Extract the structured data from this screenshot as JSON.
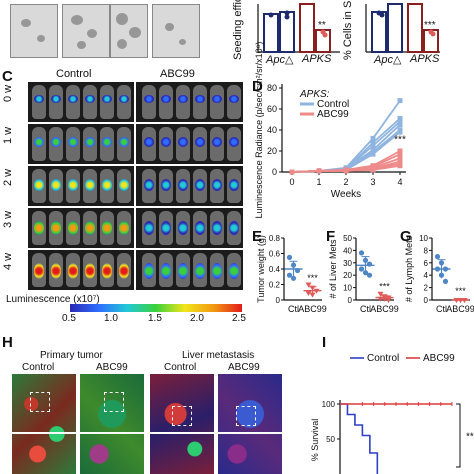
{
  "panels": {
    "C": "C",
    "D": "D",
    "E": "E",
    "F": "F",
    "G": "G",
    "H": "H",
    "I": "I"
  },
  "panelA_B": {
    "ylabel_left": "Seeding efficie",
    "ylabel_right": "% Cells in S P",
    "group1": "Apc",
    "group2": "APKS",
    "sig_left": "**",
    "sig_right": "***",
    "delta": "△"
  },
  "panelC": {
    "col_control": "Control",
    "col_abc99": "ABC99",
    "rows": [
      "0 w",
      "1 w",
      "2 w",
      "3 w",
      "4 w"
    ],
    "scale_title": "Luminescence (x10⁷)",
    "scale_ticks": [
      "0.5",
      "1.0",
      "1.5",
      "2.0",
      "2.5"
    ],
    "colors": {
      "scale": [
        "#2a2ab5",
        "#2f6dff",
        "#22c9d6",
        "#39d13a",
        "#f2e51c",
        "#f29a12",
        "#e21b1b"
      ]
    }
  },
  "panelH": {
    "primary": "Primary tumor",
    "liver": "Liver metastasis",
    "control": "Control",
    "abc99": "ABC99"
  },
  "chart_data": [
    {
      "id": "D",
      "type": "line",
      "legend_title": "APKS:",
      "xlabel": "Weeks",
      "ylabel": "Luminescence Radiance (p/sec/cm²/sr/x10⁸)",
      "x": [
        0,
        1,
        2,
        3,
        4
      ],
      "xticks": [
        "0",
        "1",
        "2",
        "3",
        "4"
      ],
      "ylim": [
        0,
        80
      ],
      "yticks": [
        "0",
        "20",
        "40",
        "60",
        "80"
      ],
      "annotation": "***",
      "series": [
        {
          "name": "Control",
          "color": "#8fb4df",
          "lines": [
            [
              0,
              1,
              4,
              32,
              68
            ],
            [
              0,
              1,
              3,
              28,
              51
            ],
            [
              0,
              1,
              3,
              25,
              48
            ],
            [
              0,
              1,
              3,
              21,
              45
            ],
            [
              0,
              1,
              2,
              19,
              40
            ],
            [
              0,
              1,
              2,
              17,
              38
            ]
          ]
        },
        {
          "name": "ABC99",
          "color": "#ef8a8a",
          "lines": [
            [
              0,
              1,
              2,
              6,
              20
            ],
            [
              0,
              1,
              2,
              5,
              17
            ],
            [
              0,
              1,
              2,
              4,
              13
            ],
            [
              0,
              1,
              2,
              3,
              10
            ],
            [
              0,
              1,
              1,
              3,
              8
            ],
            [
              0,
              1,
              1,
              2,
              6
            ]
          ]
        }
      ]
    },
    {
      "id": "E",
      "type": "scatter",
      "ylabel": "Tumor weight (g)",
      "categories": [
        "Ctl",
        "ABC99"
      ],
      "ylim": [
        0,
        0.8
      ],
      "yticks": [
        "0",
        "0.2",
        "0.4",
        "0.6",
        "0.8"
      ],
      "annotation": "***",
      "series": [
        {
          "name": "Ctl",
          "color": "#4f86c6",
          "values": [
            0.55,
            0.45,
            0.38,
            0.32,
            0.28
          ],
          "mean": 0.4,
          "sd": 0.1
        },
        {
          "name": "ABC99",
          "color": "#e05a5a",
          "values": [
            0.2,
            0.16,
            0.12,
            0.09,
            0.07
          ],
          "mean": 0.12,
          "sd": 0.05
        }
      ]
    },
    {
      "id": "F",
      "type": "scatter",
      "ylabel": "# of Liver Mets",
      "categories": [
        "Ctl",
        "ABC99"
      ],
      "ylim": [
        0,
        50
      ],
      "yticks": [
        "0",
        "10",
        "20",
        "30",
        "40",
        "50"
      ],
      "annotation": "***",
      "series": [
        {
          "name": "Ctl",
          "color": "#4f86c6",
          "values": [
            38,
            32,
            29,
            25,
            22,
            20
          ],
          "mean": 28,
          "sd": 7
        },
        {
          "name": "ABC99",
          "color": "#e05a5a",
          "values": [
            5,
            3,
            2,
            1,
            1,
            0
          ],
          "mean": 2,
          "sd": 1.5
        }
      ]
    },
    {
      "id": "G",
      "type": "scatter",
      "ylabel": "# of Lymph Mets",
      "categories": [
        "Ctl",
        "ABC99"
      ],
      "ylim": [
        0,
        10
      ],
      "yticks": [
        "0",
        "2",
        "4",
        "6",
        "8",
        "10"
      ],
      "annotation": "***",
      "series": [
        {
          "name": "Ctl",
          "color": "#4f86c6",
          "values": [
            7,
            6,
            5,
            5,
            4,
            3
          ],
          "mean": 5,
          "sd": 1.5
        },
        {
          "name": "ABC99",
          "color": "#e05a5a",
          "values": [
            0,
            0,
            0,
            0,
            0,
            0
          ],
          "mean": 0,
          "sd": 0
        }
      ]
    },
    {
      "id": "I",
      "type": "line",
      "ylabel": "% Survival",
      "ylim": [
        0,
        100
      ],
      "yticks": [
        "100",
        "50"
      ],
      "annotation": "***",
      "series": [
        {
          "name": "Control",
          "color": "#2f3fc9",
          "steps": [
            [
              0,
              100
            ],
            [
              2,
              100
            ],
            [
              2,
              85
            ],
            [
              4,
              85
            ],
            [
              4,
              70
            ],
            [
              6,
              70
            ],
            [
              6,
              55
            ],
            [
              8,
              55
            ],
            [
              8,
              30
            ],
            [
              10,
              30
            ],
            [
              10,
              0
            ]
          ]
        },
        {
          "name": "ABC99",
          "color": "#e03a3a",
          "steps": [
            [
              0,
              100
            ],
            [
              30,
              100
            ]
          ]
        }
      ]
    }
  ]
}
